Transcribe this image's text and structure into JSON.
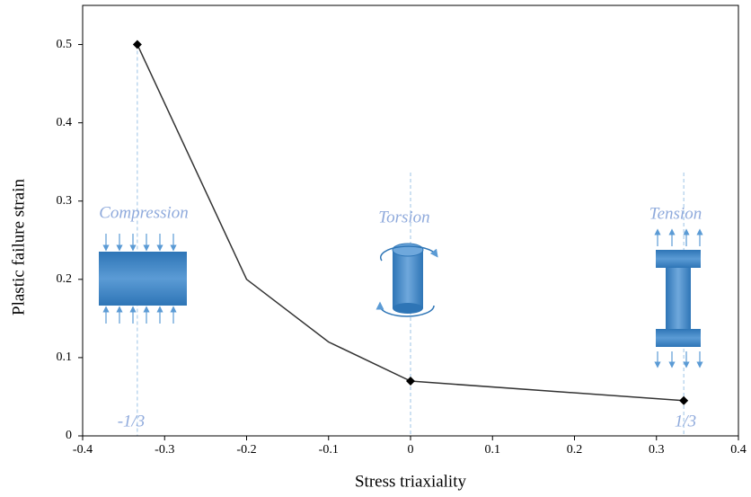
{
  "chart_data": {
    "type": "line",
    "x_label": "Stress triaxiality",
    "y_label": "Plastic failure strain",
    "x": [
      -0.3333,
      -0.2,
      -0.1,
      0,
      0.3333
    ],
    "values": [
      0.5,
      0.2,
      0.12,
      0.07,
      0.045
    ],
    "markers": [
      true,
      false,
      false,
      true,
      true
    ],
    "color": "#333333",
    "xlim": [
      -0.4,
      0.4
    ],
    "xticks": [
      -0.4,
      -0.3,
      -0.2,
      -0.1,
      0,
      0.1,
      0.2,
      0.3,
      0.4
    ],
    "ylim": [
      0,
      0.55
    ],
    "yticks": [
      0,
      0.1,
      0.2,
      0.3,
      0.4,
      0.5
    ],
    "grid": false,
    "annotations": [
      "Compression",
      "Torsion",
      "Tension",
      "-1/3",
      "1/3"
    ]
  }
}
